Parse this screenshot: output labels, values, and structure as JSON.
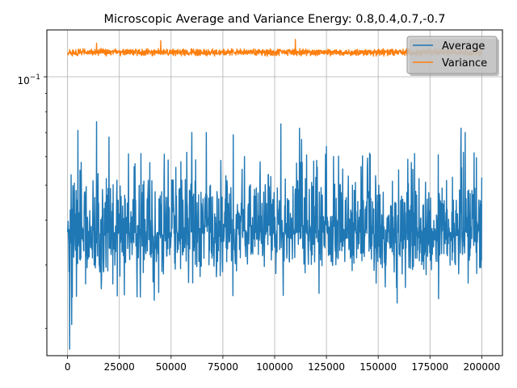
{
  "chart_data": {
    "type": "line",
    "title": "Microscopic Average and Variance Energy: 0.8,0.4,0.7,-0.7",
    "xlabel": "",
    "ylabel": "",
    "yscale": "log",
    "xlim": [
      -10000,
      210000
    ],
    "ylim": [
      0.0168,
      0.135
    ],
    "x_ticks": [
      0,
      25000,
      50000,
      75000,
      100000,
      125000,
      150000,
      175000,
      200000
    ],
    "x_tick_labels": [
      "0",
      "25000",
      "50000",
      "75000",
      "100000",
      "125000",
      "150000",
      "175000",
      "200000"
    ],
    "y_major_tick_label": {
      "base": "10",
      "exponent": "−1",
      "value": 0.1
    },
    "y_minor_ticks": [
      0.02,
      0.03,
      0.04,
      0.05,
      0.06,
      0.07,
      0.08,
      0.09
    ],
    "grid": true,
    "legend_position": "top-right",
    "series": [
      {
        "name": "Average",
        "color": "#1f77b4",
        "x_range": [
          0,
          200000
        ],
        "baseline": 0.037,
        "typical_band": [
          0.027,
          0.05
        ],
        "peaks": [
          {
            "x": 1000,
            "y": 0.0175
          },
          {
            "x": 2000,
            "y": 0.0205
          },
          {
            "x": 5000,
            "y": 0.071
          },
          {
            "x": 14000,
            "y": 0.075
          },
          {
            "x": 20000,
            "y": 0.068
          },
          {
            "x": 60000,
            "y": 0.07
          },
          {
            "x": 67000,
            "y": 0.07
          },
          {
            "x": 80000,
            "y": 0.069
          },
          {
            "x": 103000,
            "y": 0.074
          },
          {
            "x": 112000,
            "y": 0.072
          },
          {
            "x": 113000,
            "y": 0.067
          },
          {
            "x": 125000,
            "y": 0.064
          },
          {
            "x": 190000,
            "y": 0.072
          },
          {
            "x": 192000,
            "y": 0.07
          }
        ]
      },
      {
        "name": "Variance",
        "color": "#ff7f0e",
        "x_range": [
          0,
          200000
        ],
        "baseline": 0.117,
        "typical_band": [
          0.112,
          0.122
        ],
        "peaks": [
          {
            "x": 45000,
            "y": 0.126
          },
          {
            "x": 110000,
            "y": 0.127
          },
          {
            "x": 14000,
            "y": 0.124
          }
        ]
      }
    ]
  }
}
